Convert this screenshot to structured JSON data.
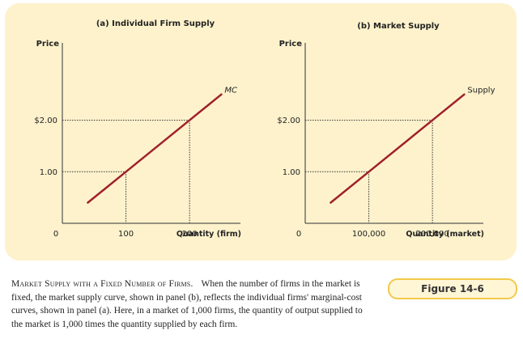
{
  "chart_data": [
    {
      "type": "line",
      "title": "(a) Individual Firm Supply",
      "ylabel": "Price",
      "xlabel": "Quantity (firm)",
      "x_ticks": [
        {
          "value": 0,
          "label": "0"
        },
        {
          "value": 100,
          "label": "100"
        },
        {
          "value": 200,
          "label": "200"
        }
      ],
      "y_ticks": [
        {
          "value": 1,
          "label": "1.00"
        },
        {
          "value": 2,
          "label": "$2.00"
        }
      ],
      "xlim": [
        0,
        280
      ],
      "ylim": [
        0,
        3.5
      ],
      "series": [
        {
          "name": "MC",
          "color": "#a0202a",
          "x": [
            40,
            100,
            200,
            250
          ],
          "y": [
            0.4,
            1.0,
            2.0,
            2.5
          ]
        }
      ],
      "guides": [
        {
          "x": 100,
          "y": 1.0
        },
        {
          "x": 200,
          "y": 2.0
        }
      ]
    },
    {
      "type": "line",
      "title": "(b) Market Supply",
      "ylabel": "Price",
      "xlabel": "Quantity (market)",
      "x_ticks": [
        {
          "value": 0,
          "label": "0"
        },
        {
          "value": 100000,
          "label": "100,000"
        },
        {
          "value": 200000,
          "label": "200,000"
        }
      ],
      "y_ticks": [
        {
          "value": 1,
          "label": "1.00"
        },
        {
          "value": 2,
          "label": "$2.00"
        }
      ],
      "xlim": [
        0,
        280000
      ],
      "ylim": [
        0,
        3.5
      ],
      "series": [
        {
          "name": "Supply",
          "color": "#a0202a",
          "x": [
            40000,
            100000,
            200000,
            250000
          ],
          "y": [
            0.4,
            1.0,
            2.0,
            2.5
          ]
        }
      ],
      "guides": [
        {
          "x": 100000,
          "y": 1.0
        },
        {
          "x": 200000,
          "y": 2.0
        }
      ]
    }
  ],
  "caption": {
    "heading": "Market Supply with a Fixed Number of Firms.",
    "text": "When the number of firms in the market is fixed, the market supply curve, shown in panel (b), reflects the individual firms' marginal-cost curves, shown in panel (a). Here, in a market of 1,000 firms, the quantity of output supplied to the market is 1,000 times the quantity supplied by each firm."
  },
  "figure_label": "Figure 14-6",
  "colors": {
    "panel_background": "#fdf2cc",
    "curve": "#a0202a",
    "label_border": "#f2c94c"
  }
}
